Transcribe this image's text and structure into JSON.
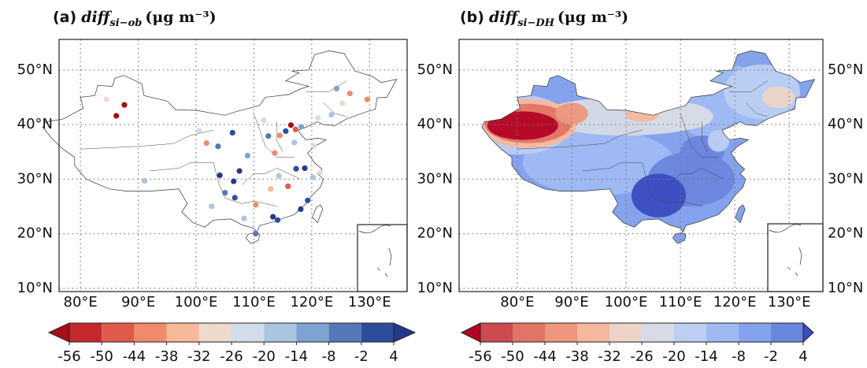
{
  "panels": [
    {
      "label": "(a)",
      "variable": "diff",
      "subscript": "si−ob",
      "unit": "(μg m⁻³)",
      "xlim": [
        76.3,
        136.5
      ],
      "ylim": [
        9.4,
        55.6
      ],
      "xticks": [
        {
          "value": 80,
          "label": "80°E"
        },
        {
          "value": 90,
          "label": "90°E"
        },
        {
          "value": 100,
          "label": "100°E"
        },
        {
          "value": 110,
          "label": "110°E"
        },
        {
          "value": 120,
          "label": "120°E"
        },
        {
          "value": 130,
          "label": "130°E"
        }
      ],
      "yticks": [
        {
          "value": 10,
          "label": "10°N"
        },
        {
          "value": 20,
          "label": "20°N"
        },
        {
          "value": 30,
          "label": "30°N"
        },
        {
          "value": 40,
          "label": "40°N"
        },
        {
          "value": 50,
          "label": "50°N"
        }
      ],
      "lat_label_sides": [
        "left"
      ],
      "field": "stations",
      "colorbar": {
        "ticks": [
          -56,
          -50,
          -44,
          -38,
          -32,
          -26,
          -20,
          -14,
          -8,
          -2,
          4
        ],
        "colors": [
          "#c5282f",
          "#e05a4a",
          "#ef8a6a",
          "#f7b89a",
          "#efd9cd",
          "#d2dcea",
          "#abc5e0",
          "#7fa3d0",
          "#5478ba",
          "#2e4c9c"
        ],
        "under": "#a50f15",
        "over": "#24398a"
      },
      "stations": [
        {
          "lon": 87.6,
          "lat": 43.6,
          "value": -60
        },
        {
          "lon": 86.2,
          "lat": 41.6,
          "value": -60
        },
        {
          "lon": 84.5,
          "lat": 44.6,
          "value": -30
        },
        {
          "lon": 126.6,
          "lat": 45.7,
          "value": -40
        },
        {
          "lon": 125.3,
          "lat": 43.9,
          "value": -32
        },
        {
          "lon": 123.4,
          "lat": 41.8,
          "value": -20
        },
        {
          "lon": 121.1,
          "lat": 41.2,
          "value": -26
        },
        {
          "lon": 129.6,
          "lat": 44.6,
          "value": -44
        },
        {
          "lon": 124.3,
          "lat": 46.6,
          "value": -14
        },
        {
          "lon": 116.4,
          "lat": 39.9,
          "value": -60
        },
        {
          "lon": 117.2,
          "lat": 39.1,
          "value": -50
        },
        {
          "lon": 114.5,
          "lat": 38.0,
          "value": -44
        },
        {
          "lon": 115.5,
          "lat": 38.8,
          "value": -2
        },
        {
          "lon": 118.2,
          "lat": 39.6,
          "value": -14
        },
        {
          "lon": 112.5,
          "lat": 37.9,
          "value": -8
        },
        {
          "lon": 113.6,
          "lat": 34.8,
          "value": -44
        },
        {
          "lon": 117.0,
          "lat": 36.7,
          "value": -20
        },
        {
          "lon": 120.4,
          "lat": 36.1,
          "value": -32
        },
        {
          "lon": 111.7,
          "lat": 40.8,
          "value": -26
        },
        {
          "lon": 106.3,
          "lat": 38.5,
          "value": -2
        },
        {
          "lon": 103.8,
          "lat": 36.0,
          "value": -8
        },
        {
          "lon": 101.8,
          "lat": 36.6,
          "value": -44
        },
        {
          "lon": 108.9,
          "lat": 34.3,
          "value": -14
        },
        {
          "lon": 104.1,
          "lat": 30.7,
          "value": 6
        },
        {
          "lon": 106.5,
          "lat": 29.6,
          "value": 6
        },
        {
          "lon": 102.7,
          "lat": 25.0,
          "value": -20
        },
        {
          "lon": 106.7,
          "lat": 26.6,
          "value": -2
        },
        {
          "lon": 108.3,
          "lat": 22.8,
          "value": -20
        },
        {
          "lon": 113.3,
          "lat": 23.1,
          "value": 6
        },
        {
          "lon": 114.1,
          "lat": 22.5,
          "value": -2
        },
        {
          "lon": 110.3,
          "lat": 20.0,
          "value": -8
        },
        {
          "lon": 110.3,
          "lat": 25.3,
          "value": -44
        },
        {
          "lon": 112.9,
          "lat": 28.2,
          "value": -38
        },
        {
          "lon": 114.3,
          "lat": 30.6,
          "value": -20
        },
        {
          "lon": 115.9,
          "lat": 28.7,
          "value": -50
        },
        {
          "lon": 117.3,
          "lat": 31.9,
          "value": -2
        },
        {
          "lon": 118.8,
          "lat": 32.0,
          "value": 6
        },
        {
          "lon": 120.2,
          "lat": 30.3,
          "value": -20
        },
        {
          "lon": 121.5,
          "lat": 31.2,
          "value": -32
        },
        {
          "lon": 119.3,
          "lat": 26.1,
          "value": -2
        },
        {
          "lon": 118.1,
          "lat": 24.5,
          "value": 6
        },
        {
          "lon": 91.1,
          "lat": 29.7,
          "value": -20
        },
        {
          "lon": 100.5,
          "lat": 38.9,
          "value": -26
        },
        {
          "lon": 107.5,
          "lat": 31.5,
          "value": 6
        },
        {
          "lon": 105.0,
          "lat": 27.5,
          "value": -8
        }
      ]
    },
    {
      "label": "(b)",
      "variable": "diff",
      "subscript": "si−DH",
      "unit": "(μg m⁻³)",
      "xlim": [
        69.3,
        136.2
      ],
      "ylim": [
        9.4,
        55.6
      ],
      "xticks": [
        {
          "value": 80,
          "label": "80°E"
        },
        {
          "value": 90,
          "label": "90°E"
        },
        {
          "value": 100,
          "label": "100°E"
        },
        {
          "value": 110,
          "label": "110°E"
        },
        {
          "value": 120,
          "label": "120°E"
        },
        {
          "value": 130,
          "label": "130°E"
        }
      ],
      "yticks": [
        {
          "value": 10,
          "label": "10°N"
        },
        {
          "value": 20,
          "label": "20°N"
        },
        {
          "value": 30,
          "label": "30°N"
        },
        {
          "value": 40,
          "label": "40°N"
        },
        {
          "value": 50,
          "label": "50°N"
        }
      ],
      "lat_label_sides": [
        "left",
        "right"
      ],
      "field": "contour",
      "colorbar": {
        "ticks": [
          -56,
          -50,
          -44,
          -38,
          -32,
          -26,
          -20,
          -14,
          -8,
          -2,
          4
        ],
        "colors": [
          "#cd4a4f",
          "#e07565",
          "#ee977e",
          "#f5b79e",
          "#ecd5c8",
          "#d6dbe6",
          "#bccff3",
          "#9fbaf3",
          "#85a3ec",
          "#6a86dc"
        ],
        "under": "#b40426",
        "over": "#3b4cc0"
      }
    }
  ]
}
